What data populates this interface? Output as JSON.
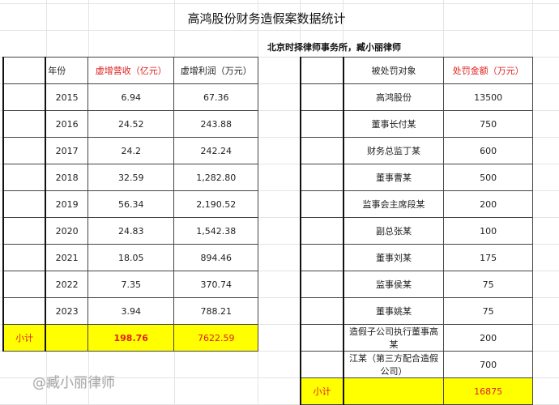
{
  "title": "高鸿股份财务造假案数据统计",
  "subtitle": "北京时择律师事务所，臧小丽律师",
  "left_table": {
    "headers": [
      "",
      "年份",
      "虚增营收（亿元）",
      "虚增利润（万元）"
    ],
    "rows": [
      [
        "2015",
        "6.94",
        "67.36"
      ],
      [
        "2016",
        "24.52",
        "243.88"
      ],
      [
        "2017",
        "24.2",
        "242.24"
      ],
      [
        "2018",
        "32.59",
        "1,282.80"
      ],
      [
        "2019",
        "56.34",
        "2,190.52"
      ],
      [
        "2020",
        "24.83",
        "1,542.38"
      ],
      [
        "2021",
        "18.05",
        "894.46"
      ],
      [
        "2022",
        "7.35",
        "370.74"
      ],
      [
        "2023",
        "3.94",
        "788.21"
      ]
    ],
    "subtotal": {
      "label": "小计",
      "revenue": "198.76",
      "profit": "7622.59"
    }
  },
  "right_table": {
    "headers": [
      "",
      "被处罚对象",
      "处罚金额（万元）"
    ],
    "rows": [
      [
        "高鸿股份",
        "13500"
      ],
      [
        "董事长付某",
        "750"
      ],
      [
        "财务总监丁某",
        "600"
      ],
      [
        "董事曹某",
        "500"
      ],
      [
        "监事会主席段某",
        "200"
      ],
      [
        "副总张某",
        "100"
      ],
      [
        "董事刘某",
        "175"
      ],
      [
        "监事侯某",
        "75"
      ],
      [
        "董事姚某",
        "75"
      ],
      [
        "造假子公司执行董事高某",
        "200"
      ],
      [
        "江某（第三方配合造假公司）",
        "700"
      ]
    ],
    "subtotal": {
      "label": "小计",
      "amount": "16875"
    }
  },
  "watermark": "@臧小丽律师",
  "colors": {
    "highlight": "#ffff00",
    "header_red": "#e02020"
  }
}
